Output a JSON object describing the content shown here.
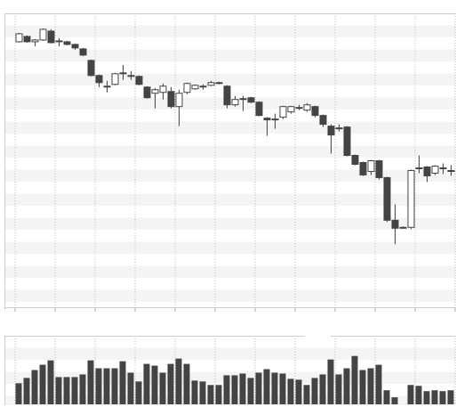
{
  "chart_data": [
    {
      "type": "candlestick",
      "open": [
        301,
        307,
        301,
        303,
        313,
        302,
        301,
        298,
        293,
        280,
        263,
        251,
        253,
        266,
        263,
        262,
        250,
        243,
        244,
        245,
        228,
        244,
        248,
        250,
        252,
        254,
        251,
        230,
        236,
        238,
        233,
        215,
        213,
        216,
        222,
        226,
        224,
        228,
        218,
        206,
        204,
        205,
        173,
        165,
        155,
        167,
        148,
        100,
        92,
        92,
        159,
        160,
        153,
        159,
        156
      ],
      "high": [
        311,
        308,
        304,
        316,
        315,
        305,
        302,
        299,
        294,
        281,
        264,
        257,
        266,
        275,
        268,
        263,
        251,
        249,
        254,
        250,
        247,
        255,
        253,
        253,
        257,
        256,
        252,
        240,
        240,
        239,
        234,
        216,
        220,
        229,
        229,
        230,
        232,
        229,
        219,
        208,
        208,
        206,
        174,
        166,
        168,
        168,
        149,
        118,
        93,
        157,
        173,
        161,
        162,
        164,
        162
      ],
      "low": [
        300,
        300,
        296,
        302,
        299,
        296,
        297,
        292,
        285,
        262,
        250,
        244,
        252,
        258,
        258,
        252,
        237,
        226,
        236,
        226,
        206,
        242,
        247,
        247,
        251,
        253,
        226,
        228,
        223,
        232,
        217,
        195,
        203,
        214,
        220,
        224,
        222,
        216,
        205,
        175,
        200,
        172,
        162,
        150,
        151,
        146,
        98,
        73,
        91,
        90,
        153,
        143,
        151,
        152,
        150
      ],
      "close": [
        310,
        301,
        303,
        315,
        300,
        301,
        298,
        294,
        286,
        263,
        255,
        251,
        265,
        266,
        263,
        253,
        238,
        247,
        251,
        228,
        243,
        254,
        252,
        251,
        255,
        255,
        230,
        236,
        237,
        233,
        218,
        213,
        214,
        228,
        228,
        227,
        230,
        218,
        208,
        196,
        204,
        173,
        163,
        151,
        167,
        148,
        100,
        91,
        92,
        156,
        159,
        150,
        161,
        159,
        156
      ],
      "up_color": "#ffffff",
      "down_color": "#444444",
      "edge_color": "#444444",
      "ylim": [
        0,
        333
      ]
    },
    {
      "type": "bar",
      "values": [
        24,
        30,
        39,
        45,
        50,
        31,
        31,
        31,
        34,
        50,
        41,
        41,
        41,
        49,
        36,
        26,
        46,
        44,
        36,
        46,
        52,
        46,
        27,
        26,
        22,
        22,
        33,
        33,
        35,
        30,
        36,
        40,
        36,
        35,
        29,
        28,
        22,
        30,
        34,
        51,
        34,
        41,
        55,
        39,
        41,
        45,
        16,
        8,
        0,
        22,
        21,
        15,
        16,
        15,
        16
      ],
      "color": "#444444",
      "ylim": [
        0,
        78
      ]
    }
  ]
}
